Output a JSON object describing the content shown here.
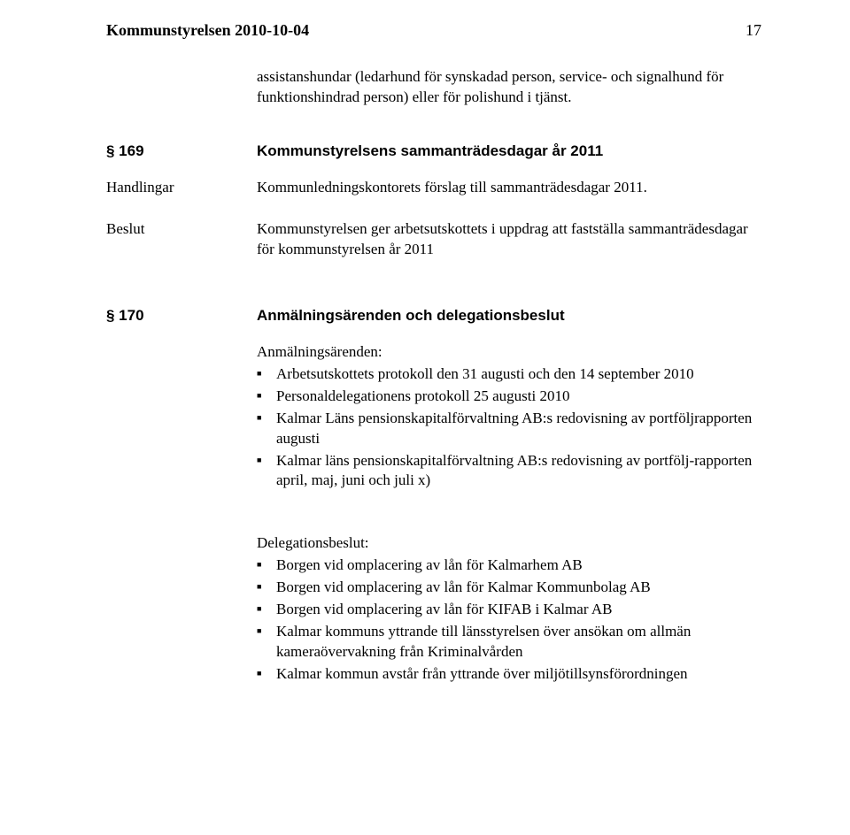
{
  "header": {
    "title": "Kommunstyrelsen 2010-10-04",
    "page": "17"
  },
  "intro": "assistanshundar (ledarhund för synskadad person, service- och signalhund för funktionshindrad person) eller för polishund i tjänst.",
  "s169": {
    "num": "§ 169",
    "title": "Kommunstyrelsens sammanträdesdagar år 2011",
    "handlingar_label": "Handlingar",
    "handlingar_text": "Kommunledningskontorets förslag till sammanträdesdagar 2011.",
    "beslut_label": "Beslut",
    "beslut_text": "Kommunstyrelsen ger arbetsutskottets i uppdrag att fastställa sammanträdesdagar för kommunstyrelsen år 2011"
  },
  "s170": {
    "num": "§ 170",
    "title": "Anmälningsärenden och delegationsbeslut",
    "anmal_head": "Anmälningsärenden:",
    "anmal_items": [
      "Arbetsutskottets protokoll den 31 augusti och den 14 september 2010",
      "Personaldelegationens protokoll 25 augusti 2010",
      "Kalmar Läns pensionskapitalförvaltning AB:s redovisning av portföljrapporten augusti",
      "Kalmar läns pensionskapitalförvaltning AB:s redovisning av portfölj-rapporten april, maj, juni och juli x)"
    ],
    "deleg_head": "Delegationsbeslut:",
    "deleg_items": [
      "Borgen vid omplacering av lån för Kalmarhem AB",
      "Borgen vid omplacering av lån för Kalmar Kommunbolag AB",
      "Borgen vid omplacering av lån för KIFAB i Kalmar AB",
      "Kalmar kommuns yttrande till länsstyrelsen över ansökan om allmän kameraövervakning från Kriminalvården",
      "Kalmar kommun avstår från yttrande över miljötillsynsförordningen"
    ]
  }
}
